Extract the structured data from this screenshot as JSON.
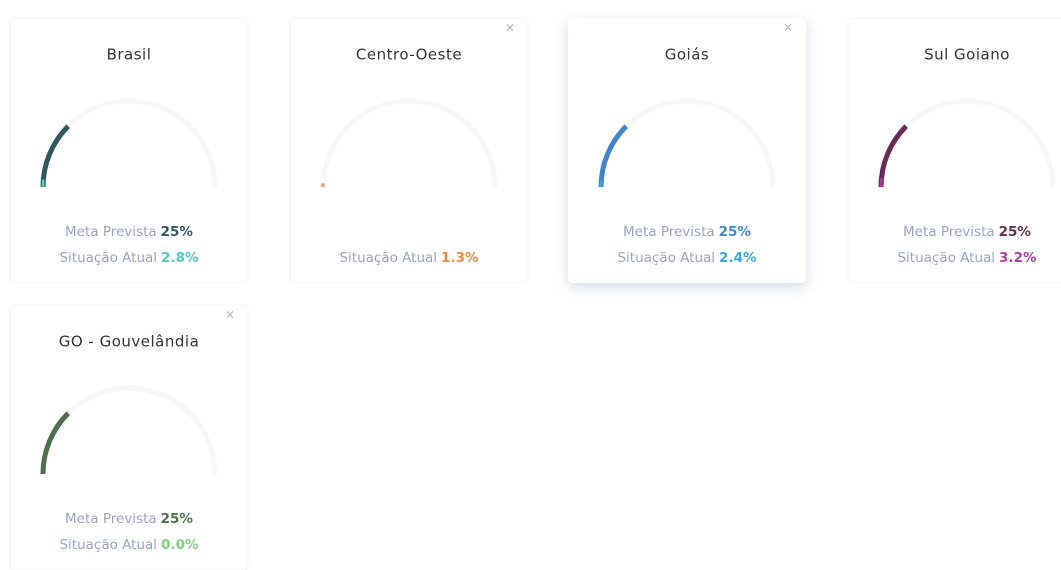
{
  "cards": [
    {
      "title": "Brasil",
      "color": "#2e5a5e",
      "accent": "#4fc9cf",
      "closable": false,
      "meta": {
        "label": "Meta Prevista",
        "value": 25,
        "text": "25%"
      },
      "atual": {
        "label": "Situação Atual",
        "value": 2.8,
        "text": "2.8%"
      }
    },
    {
      "title": "Centro-Oeste",
      "color": "#f3a15e",
      "accent": "#f2883a",
      "closable": true,
      "atual": {
        "label": "Situação Atual",
        "value": 1.3,
        "text": "1.3%"
      }
    },
    {
      "title": "Goiás",
      "color": "#3d86d6",
      "accent": "#36a6e6",
      "closable": true,
      "raised": true,
      "meta": {
        "label": "Meta Prevista",
        "value": 25,
        "text": "25%"
      },
      "atual": {
        "label": "Situação Atual",
        "value": 2.4,
        "text": "2.4%"
      }
    },
    {
      "title": "Sul Goiano",
      "color": "#6a2a58",
      "accent": "#b23aa6",
      "closable": false,
      "meta": {
        "label": "Meta Prevista",
        "value": 25,
        "text": "25%"
      },
      "atual": {
        "label": "Situação Atual",
        "value": 3.2,
        "text": "3.2%"
      }
    },
    {
      "title": "GO - Gouvelândia",
      "color": "#4b7148",
      "accent": "#7fd37a",
      "closable": true,
      "meta": {
        "label": "Meta Prevista",
        "value": 25,
        "text": "25%"
      },
      "atual": {
        "label": "Situação Atual",
        "value": 0.0,
        "text": "0.0%"
      }
    }
  ]
}
